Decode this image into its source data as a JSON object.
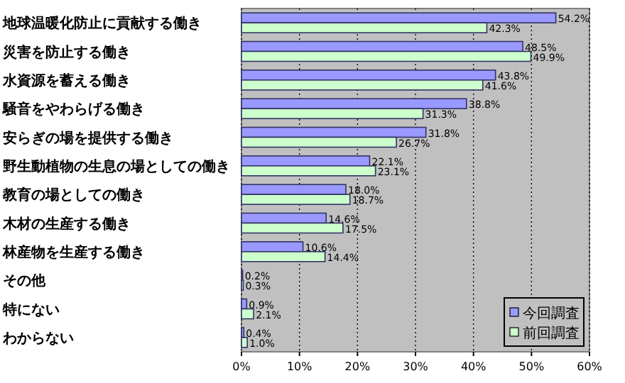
{
  "chart_data": {
    "type": "bar",
    "orientation": "horizontal",
    "categories": [
      "地球温暖化防止に貢献する働き",
      "災害を防止する働き",
      "水資源を蓄える働き",
      "騒音をやわらげる働き",
      "安らぎの場を提供する働き",
      "野生動植物の生息の場としての働き",
      "教育の場としての働き",
      "木材の生産する働き",
      "林産物を生産する働き",
      "その他",
      "特にない",
      "わからない"
    ],
    "series": [
      {
        "name": "今回調査",
        "color": "#9999ff",
        "values": [
          54.2,
          48.5,
          43.8,
          38.8,
          31.8,
          22.1,
          18.0,
          14.6,
          10.6,
          0.2,
          0.9,
          0.4
        ],
        "value_labels": [
          "54.2%",
          "48.5%",
          "43.8%",
          "38.8%",
          "31.8%",
          "22.1%",
          "18.0%",
          "14.6%",
          "10.6%",
          "0.2%",
          "0.9%",
          "0.4%"
        ]
      },
      {
        "name": "前回調査",
        "color": "#ccffcc",
        "values": [
          42.3,
          49.9,
          41.6,
          31.3,
          26.7,
          23.1,
          18.7,
          17.5,
          14.4,
          0.3,
          2.1,
          1.0
        ],
        "value_labels": [
          "42.3%",
          "49.9%",
          "41.6%",
          "31.3%",
          "26.7%",
          "23.1%",
          "18.7%",
          "17.5%",
          "14.4%",
          "0.3%",
          "2.1%",
          "1.0%"
        ]
      }
    ],
    "xlim": [
      0,
      60
    ],
    "xticks": [
      {
        "value": 0,
        "label": "0%"
      },
      {
        "value": 10,
        "label": "10%"
      },
      {
        "value": 20,
        "label": "20%"
      },
      {
        "value": 30,
        "label": "30%"
      },
      {
        "value": 40,
        "label": "40%"
      },
      {
        "value": 50,
        "label": "50%"
      },
      {
        "value": 60,
        "label": "60%"
      }
    ],
    "grid": "x",
    "legend": "bottom right"
  }
}
